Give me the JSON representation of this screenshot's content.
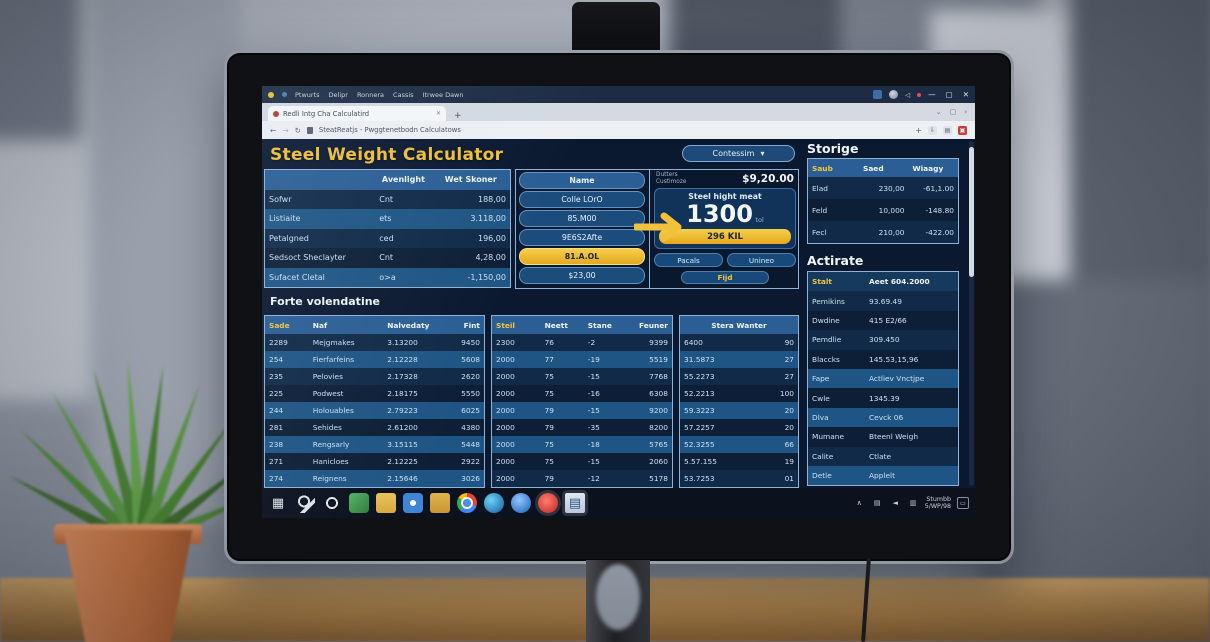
{
  "browser": {
    "menu": [
      "Ptwurts",
      "Delipr",
      "Ronnera",
      "Cassis",
      "Itrwee Dawn"
    ],
    "tab_title": "Redli Intg Cha Calculatird",
    "tab_close": "✕",
    "new_tab": "+",
    "tab_right_icons": [
      "⌄",
      "▢",
      "›"
    ],
    "nav_back": "←",
    "nav_forward": "→",
    "nav_reload": "↻",
    "url": "SteatReatjs - Pwggtenetbodn Calculatows",
    "addr_plus": "+",
    "addr_icons": [
      "⇩",
      "▤",
      "▣"
    ],
    "controls": {
      "min": "—",
      "max": "▢",
      "close": "✕"
    }
  },
  "app": {
    "title": "Steel Weight Calculator",
    "accent_color": "#f0bf35",
    "dropdown_label": "Contessim",
    "dropdown_caret": "▾",
    "top_table": [
      {
        "c": [
          "",
          "Avenlight",
          "Wet Skoner"
        ],
        "h": true
      },
      {
        "c": [
          "Sofwr",
          "Cnt",
          "188,00"
        ]
      },
      {
        "c": [
          "Listiaite",
          "ets",
          "3.118,00"
        ],
        "hl": true
      },
      {
        "c": [
          "Petalgned",
          "ced",
          "196,00"
        ]
      },
      {
        "c": [
          "Sedsoct Sheclayter",
          "Cnt",
          "4,28,00"
        ]
      },
      {
        "c": [
          "Sufacet Cletal",
          "o>a",
          "-1,150,00"
        ],
        "hl": true
      }
    ],
    "name_list": [
      {
        "c": [
          "Name"
        ],
        "h": true
      },
      {
        "c": [
          "Colle LOrO"
        ]
      },
      {
        "c": [
          "85.M00"
        ]
      },
      {
        "c": [
          "9E6S2Afte"
        ]
      },
      {
        "c": [
          "81.A.OL"
        ],
        "hl": true
      },
      {
        "c": [
          "$23,00"
        ]
      }
    ],
    "result": {
      "label_line1": "Dutters",
      "label_line2": "Custimoze",
      "amount": "$9,20.00",
      "card_title": "Steel hight meat",
      "value": "1300",
      "unit": "tol",
      "badge": "296 KIL",
      "btn1": "Pacals",
      "btn2": "Unineo",
      "find": "Fijd"
    },
    "section2_title": "Forte volendatine",
    "table1": [
      {
        "c": [
          "Sade",
          "Naf",
          "Nalvedaty",
          "Fint"
        ],
        "h": true
      },
      {
        "c": [
          "2289",
          "Mejgmakes",
          "3.13200",
          "9450"
        ]
      },
      {
        "c": [
          "254",
          "Fierfarfeins",
          "2.12228",
          "5608"
        ],
        "hl": true
      },
      {
        "c": [
          "235",
          "Pelovies",
          "2.17328",
          "2620"
        ]
      },
      {
        "c": [
          "225",
          "Podwest",
          "2.18175",
          "5550"
        ]
      },
      {
        "c": [
          "244",
          "Holouables",
          "2.79223",
          "6025"
        ],
        "hl": true
      },
      {
        "c": [
          "281",
          "Sehides",
          "2.61200",
          "4380"
        ]
      },
      {
        "c": [
          "238",
          "Rengsarly",
          "3.15115",
          "5448"
        ],
        "hl": true
      },
      {
        "c": [
          "271",
          "Hanicloes",
          "2.12225",
          "2922"
        ]
      },
      {
        "c": [
          "274",
          "Reignens",
          "2.15646",
          "3026"
        ],
        "hl": true
      }
    ],
    "table2": [
      {
        "c": [
          "Steil",
          "Neett",
          "Stane",
          "Feuner"
        ],
        "h": true
      },
      {
        "c": [
          "2300",
          "76",
          "-2",
          "9399"
        ]
      },
      {
        "c": [
          "2000",
          "77",
          "-19",
          "5519"
        ],
        "hl": true
      },
      {
        "c": [
          "2000",
          "75",
          "-15",
          "7768"
        ]
      },
      {
        "c": [
          "2000",
          "75",
          "-16",
          "6308"
        ]
      },
      {
        "c": [
          "2000",
          "79",
          "-15",
          "9200"
        ],
        "hl": true
      },
      {
        "c": [
          "2000",
          "79",
          "-35",
          "8200"
        ]
      },
      {
        "c": [
          "2000",
          "75",
          "-18",
          "5765"
        ],
        "hl": true
      },
      {
        "c": [
          "2000",
          "75",
          "-15",
          "2060"
        ]
      },
      {
        "c": [
          "2000",
          "79",
          "-12",
          "5178"
        ]
      }
    ],
    "table3": [
      {
        "c": [
          "Stera Wanter"
        ],
        "h": true
      },
      {
        "c": [
          "6400",
          "90"
        ]
      },
      {
        "c": [
          "31.5873",
          "27"
        ],
        "hl": true
      },
      {
        "c": [
          "55.2273",
          "27"
        ]
      },
      {
        "c": [
          "52.2213",
          "100"
        ]
      },
      {
        "c": [
          "59.3223",
          "20"
        ],
        "hl": true
      },
      {
        "c": [
          "57.2257",
          "20"
        ]
      },
      {
        "c": [
          "52.3255",
          "66"
        ],
        "hl": true
      },
      {
        "c": [
          "5.57.155",
          "19"
        ]
      },
      {
        "c": [
          "53.7253",
          "01"
        ]
      }
    ],
    "storige_title": "Storige",
    "storige": [
      {
        "c": [
          "Saub",
          "Saed",
          "Wiaagy"
        ],
        "h": true
      },
      {
        "c": [
          "Elad",
          "230,00",
          "-61,1.00"
        ]
      },
      {
        "c": [
          "Feld",
          "10,000",
          "-148.80"
        ]
      },
      {
        "c": [
          "Fecl",
          "210,00",
          "-422.00"
        ]
      }
    ],
    "actirate_title": "Actirate",
    "actirate": [
      {
        "c": [
          "Stalt",
          "Aeet 604.2000"
        ],
        "h": true
      },
      {
        "c": [
          "Pemikins",
          "93.69.49"
        ]
      },
      {
        "c": [
          "Dwdine",
          "415  E2/66"
        ]
      },
      {
        "c": [
          "Pemdlie",
          "309.450"
        ]
      },
      {
        "c": [
          "Blaccks",
          "145.53,15,96"
        ]
      },
      {
        "c": [
          "Fape",
          "Actliev Vnctjpe"
        ],
        "hl": true
      },
      {
        "c": [
          "Cwle",
          "1345.39"
        ]
      },
      {
        "c": [
          "Dlva",
          "Cevck 06"
        ],
        "hl": true
      },
      {
        "c": [
          "Mumane",
          "Bteenl Weigh"
        ]
      },
      {
        "c": [
          "Calite",
          "Ctlate"
        ]
      },
      {
        "c": [
          "Detle",
          "Applelt"
        ],
        "hl": true
      }
    ]
  },
  "taskbar": {
    "icons": [
      {
        "name": "start-icon",
        "glyph": "▦",
        "fg": "#e3e7ec",
        "bg": "transparent"
      },
      {
        "name": "search-icon",
        "bg": "radial-gradient(circle at 45% 42%, rgba(0,0,0,0) 0 4px, #dfe3e8 4px 6px, rgba(0,0,0,0) 6px), linear-gradient(135deg, rgba(0,0,0,0) 0 62%, #dfe3e8 62% 74%, rgba(0,0,0,0) 74%)"
      },
      {
        "name": "ring-app-icon",
        "bg": "radial-gradient(circle at 50% 50%, rgba(0,0,0,0) 0 4px, #e8ebef 4px 6px, rgba(0,0,0,0) 6px)"
      },
      {
        "name": "green-app-icon",
        "bg": "linear-gradient(135deg,#57b368,#2e7d3c)",
        "radius": "4px"
      },
      {
        "name": "folder-icon",
        "bg": "linear-gradient(180deg,#e8c35c,#d8a83c)",
        "radius": "3px"
      },
      {
        "name": "photos-app-icon",
        "bg": "radial-gradient(circle at 50% 50%, #ffffff 0 3px, #3f86d8 3px)",
        "radius": "4px"
      },
      {
        "name": "folder2-icon",
        "bg": "linear-gradient(180deg,#e2b44e,#c9952f)",
        "radius": "3px"
      },
      {
        "name": "chrome-icon",
        "bg": "radial-gradient(circle at 50% 50%, #4a90e2 0 4px, #ffffff 4px 6px, rgba(0,0,0,0) 6px), conic-gradient(#ea4335 0 30%, #4285f4 30% 62%, #34a853 62% 84%, #fbbc05 84%)",
        "round": true
      },
      {
        "name": "edge-icon",
        "bg": "radial-gradient(circle at 35% 35%, #6fd0f5, #0d5f9e)",
        "round": true
      },
      {
        "name": "globe-app-icon",
        "bg": "radial-gradient(circle at 40% 35%, #8fc7ff, #1a5fb0)",
        "round": true
      },
      {
        "name": "red-app-icon",
        "bg": "radial-gradient(circle at 42% 38%, #ff7a6e, #c0271e)",
        "round": true,
        "active": true
      },
      {
        "name": "document-app-icon",
        "glyph": "▤",
        "fg": "#35547a",
        "bg": "linear-gradient(180deg,#dfe8f2,#b9c9dc)",
        "radius": "2px",
        "active": true
      }
    ],
    "tray_icons": [
      {
        "name": "tray-chevron-icon",
        "glyph": "∧",
        "bg": "transparent"
      },
      {
        "name": "tray-network-icon",
        "glyph": "▤",
        "bg": "transparent"
      },
      {
        "name": "tray-volume-icon",
        "glyph": "◄",
        "bg": "transparent"
      },
      {
        "name": "tray-battery-icon",
        "glyph": "▥",
        "bg": "transparent"
      }
    ],
    "clock_line1": "Stumbb",
    "clock_line2": "5/WP/98",
    "action_glyph": "▭"
  }
}
